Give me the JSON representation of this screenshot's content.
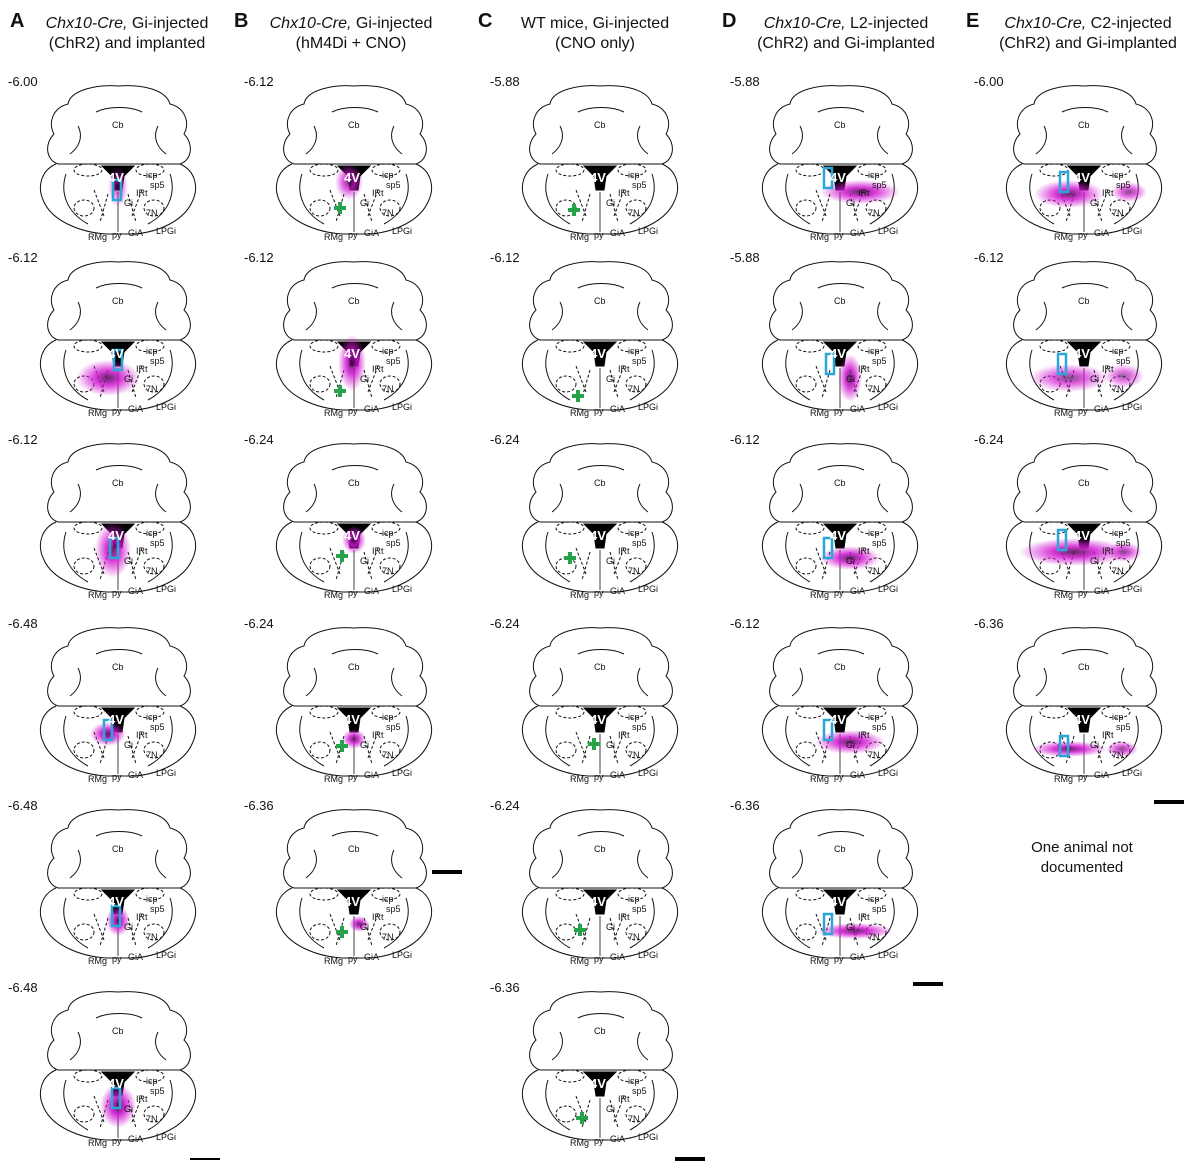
{
  "columns": [
    {
      "letter": "A",
      "title_italic": "Chx10-Cre,",
      "title_rest": " Gi-injected",
      "title_line2": "(ChR2) and implanted",
      "panels": [
        "-6.00",
        "-6.12",
        "-6.12",
        "-6.48",
        "-6.48",
        "-6.48"
      ]
    },
    {
      "letter": "B",
      "title_italic": "Chx10-Cre,",
      "title_rest": " Gi-injected",
      "title_line2": "(hM4Di + CNO)",
      "panels": [
        "-6.12",
        "-6.12",
        "-6.24",
        "-6.24",
        "-6.36"
      ]
    },
    {
      "letter": "C",
      "title_italic": "",
      "title_rest": "WT mice, Gi-injected",
      "title_line2": "(CNO only)",
      "panels": [
        "-5.88",
        "-6.12",
        "-6.24",
        "-6.24",
        "-6.24",
        "-6.36"
      ]
    },
    {
      "letter": "D",
      "title_italic": "Chx10-Cre,",
      "title_rest": " L2-injected",
      "title_line2": "(ChR2) and Gi-implanted",
      "panels": [
        "-5.88",
        "-5.88",
        "-6.12",
        "-6.12",
        "-6.36"
      ]
    },
    {
      "letter": "E",
      "title_italic": "Chx10-Cre,",
      "title_rest": " C2-injected",
      "title_line2": "(ChR2) and Gi-implanted",
      "panels": [
        "-6.00",
        "-6.12",
        "-6.24",
        "-6.36"
      ]
    }
  ],
  "region_labels": {
    "cb": "Cb",
    "v4": "4V",
    "icp": "icp",
    "sp5": "sp5",
    "irt": "IRt",
    "gi": "Gi",
    "n7": "7N",
    "rmg": "RMg",
    "py": "py",
    "gia": "GiA",
    "lpgi": "LPGi"
  },
  "note_line1": "One animal not",
  "note_line2": "documented",
  "colors": {
    "injection": "#d21ad2",
    "implant": "#2aa7d8",
    "marker": "#27a24a",
    "outline": "#111111"
  }
}
